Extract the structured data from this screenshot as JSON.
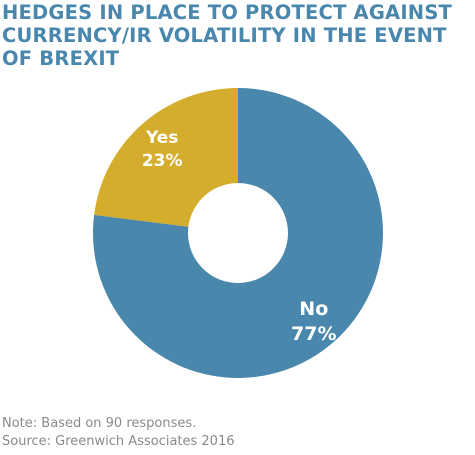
{
  "chart_data": {
    "type": "pie",
    "title": "HEDGES IN PLACE TO PROTECT AGAINST CURRENCY/IR VOLATILITY IN THE EVENT OF BREXIT",
    "categories": [
      "No",
      "Yes"
    ],
    "values": [
      77,
      23
    ],
    "value_labels": [
      "77%",
      "23%"
    ],
    "colors": [
      "#4a87ad",
      "#d3ad2b"
    ],
    "donut": true,
    "legend": "none"
  },
  "footnotes": {
    "note": "Note: Based on 90 responses.",
    "source": "Source: Greenwich Associates 2016"
  }
}
